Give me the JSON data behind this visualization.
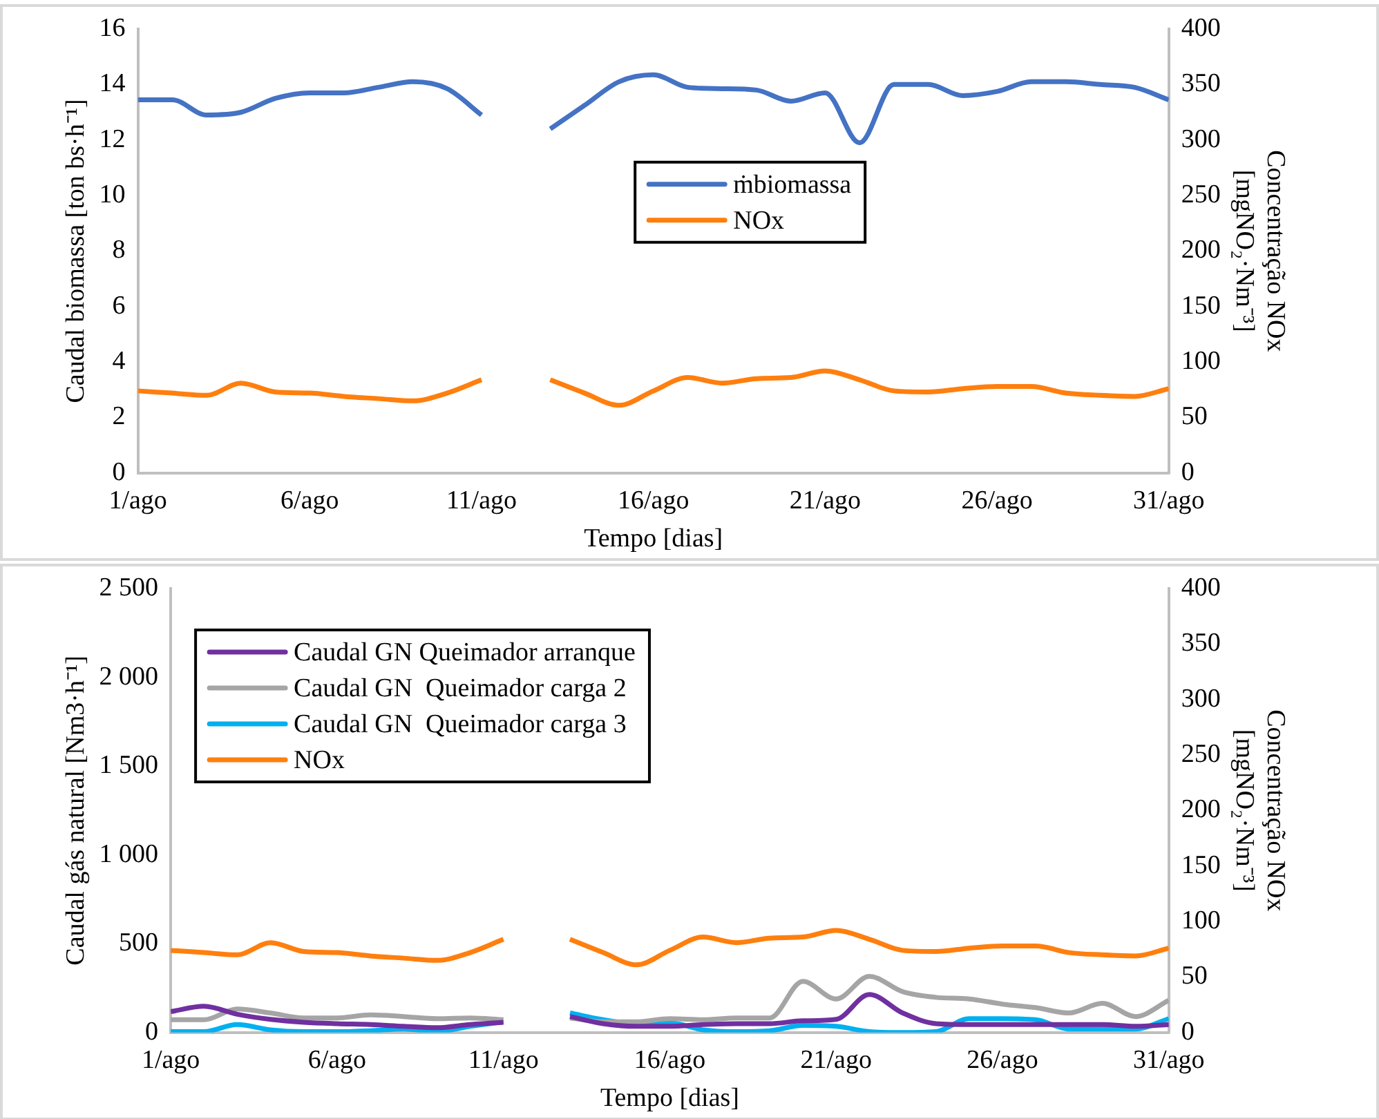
{
  "chart_data": [
    {
      "type": "line",
      "xlabel": "Tempo [dias]",
      "ylabel": "Caudal biomassa [ton bs·h⁻¹]",
      "y2label": "Concentração NOx\n[mgNO₂·Nm⁻³]",
      "legend": "center",
      "x": [
        1,
        2,
        3,
        4,
        5,
        6,
        7,
        8,
        9,
        10,
        11,
        12,
        13,
        14,
        15,
        16,
        17,
        18,
        19,
        20,
        21,
        22,
        23,
        24,
        25,
        26,
        27,
        28,
        29,
        30,
        31
      ],
      "xlim": [
        1,
        31
      ],
      "xticks": [
        {
          "value": 1,
          "label": "1/ago"
        },
        {
          "value": 6,
          "label": "6/ago"
        },
        {
          "value": 11,
          "label": "11/ago"
        },
        {
          "value": 16,
          "label": "16/ago"
        },
        {
          "value": 21,
          "label": "21/ago"
        },
        {
          "value": 26,
          "label": "26/ago"
        },
        {
          "value": 31,
          "label": "31/ago"
        }
      ],
      "ylim": [
        0,
        16
      ],
      "yticks": [
        0,
        2,
        4,
        6,
        8,
        10,
        12,
        14,
        16
      ],
      "y2lim": [
        0,
        400
      ],
      "y2ticks": [
        0,
        50,
        100,
        150,
        200,
        250,
        300,
        350,
        400
      ],
      "series": [
        {
          "name": "ṁbiomassa",
          "color": "#4472c4",
          "values": [
            13.45,
            13.45,
            12.9,
            13.0,
            13.5,
            13.7,
            13.7,
            13.9,
            14.1,
            13.85,
            12.9,
            null,
            12.4,
            13.25,
            14.1,
            14.35,
            13.9,
            13.85,
            13.8,
            13.4,
            13.7,
            11.9,
            14.0,
            14.0,
            13.6,
            13.75,
            14.1,
            14.1,
            14.0,
            13.9,
            13.45
          ]
        },
        {
          "name": "NOx",
          "color": "#ff7f0e",
          "axis": "y2",
          "values": [
            74,
            72,
            70,
            81,
            73,
            72,
            69,
            67,
            65,
            72,
            84,
            null,
            84,
            72,
            61,
            74,
            86,
            81,
            85,
            86,
            92,
            84,
            74,
            73,
            76,
            78,
            78,
            72,
            70,
            69,
            76
          ]
        }
      ]
    },
    {
      "type": "line",
      "xlabel": "Tempo [dias]",
      "ylabel": "Caudal gás natural [Nm3·h⁻¹]",
      "y2label": "Concentração NOx\n[mgNO₂·Nm⁻³]",
      "legend": "top left",
      "x": [
        1,
        2,
        3,
        4,
        5,
        6,
        7,
        8,
        9,
        10,
        11,
        12,
        13,
        14,
        15,
        16,
        17,
        18,
        19,
        20,
        21,
        22,
        23,
        24,
        25,
        26,
        27,
        28,
        29,
        30,
        31
      ],
      "xlim": [
        1,
        31
      ],
      "xticks": [
        {
          "value": 1,
          "label": "1/ago"
        },
        {
          "value": 6,
          "label": "6/ago"
        },
        {
          "value": 11,
          "label": "11/ago"
        },
        {
          "value": 16,
          "label": "16/ago"
        },
        {
          "value": 21,
          "label": "21/ago"
        },
        {
          "value": 26,
          "label": "26/ago"
        },
        {
          "value": 31,
          "label": "31/ago"
        }
      ],
      "ylim": [
        0,
        2500
      ],
      "yticks": [
        0,
        {
          "value": 500,
          "label": "500"
        },
        {
          "value": 1000,
          "label": "1 000"
        },
        {
          "value": 1500,
          "label": "1 500"
        },
        {
          "value": 2000,
          "label": "2 000"
        },
        {
          "value": 2500,
          "label": "2 500"
        }
      ],
      "y2lim": [
        0,
        400
      ],
      "y2ticks": [
        0,
        50,
        100,
        150,
        200,
        250,
        300,
        350,
        400
      ],
      "series": [
        {
          "name": "Caudal GN Queimador arranque",
          "color": "#7030a0",
          "values": [
            118,
            148,
            103,
            74,
            58,
            50,
            45,
            35,
            27,
            45,
            58,
            null,
            90,
            50,
            35,
            35,
            45,
            50,
            50,
            66,
            74,
            214,
            110,
            50,
            45,
            45,
            45,
            45,
            45,
            35,
            45
          ]
        },
        {
          "name": "Caudal GN  Queimador carga 2",
          "color": "#a5a5a5",
          "values": [
            72,
            72,
            132,
            110,
            82,
            82,
            99,
            90,
            78,
            82,
            72,
            null,
            82,
            60,
            60,
            78,
            72,
            82,
            82,
            288,
            189,
            316,
            230,
            198,
            189,
            160,
            140,
            110,
            165,
            90,
            181
          ]
        },
        {
          "name": "Caudal GN  Queimador carga 3",
          "color": "#00b0f0",
          "values": [
            5,
            5,
            45,
            15,
            5,
            5,
            10,
            20,
            5,
            35,
            60,
            null,
            110,
            72,
            50,
            55,
            15,
            5,
            10,
            40,
            35,
            5,
            0,
            5,
            78,
            78,
            72,
            20,
            20,
            20,
            78
          ]
        },
        {
          "name": "NOx",
          "color": "#ff7f0e",
          "axis": "y2",
          "values": [
            74,
            72,
            70,
            81,
            73,
            72,
            69,
            67,
            65,
            72,
            84,
            null,
            84,
            72,
            61,
            74,
            86,
            81,
            85,
            86,
            92,
            84,
            74,
            73,
            76,
            78,
            78,
            72,
            70,
            69,
            76
          ]
        }
      ]
    }
  ]
}
